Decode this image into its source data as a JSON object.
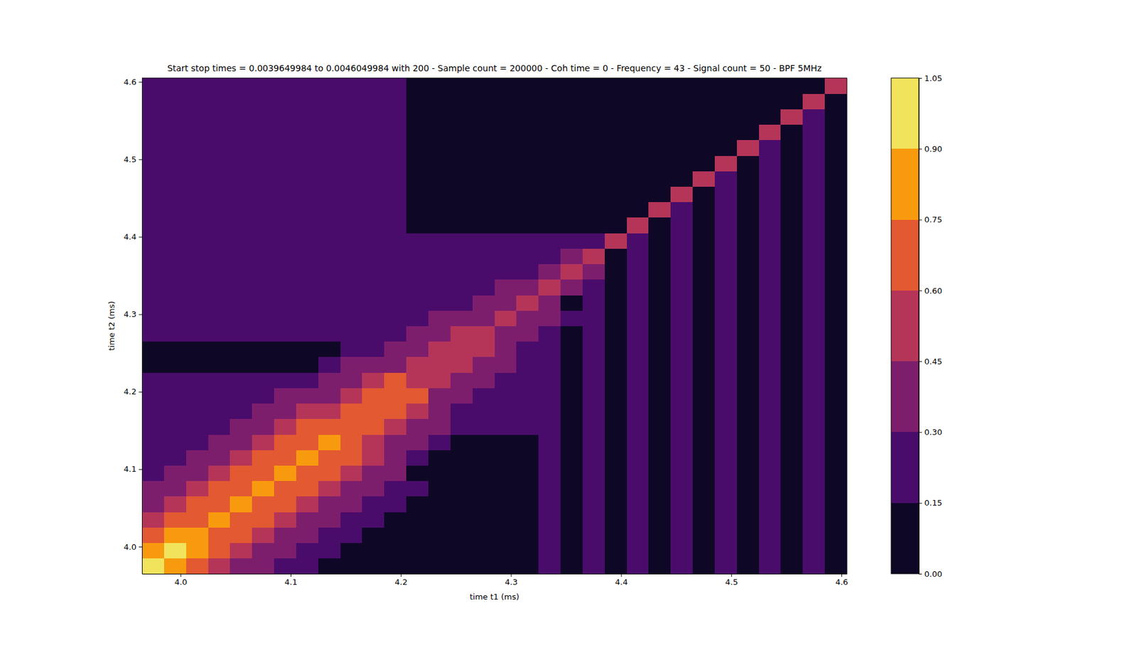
{
  "chart_data": {
    "type": "heatmap",
    "title": "Start stop times = 0.0039649984 to 0.0046049984 with 200 - Sample count = 200000 - Coh time = 0 - Frequency = 43 - Signal count = 50 - BPF 5MHz",
    "x_label": "time t1 (ms)",
    "y_label": "time t2 (ms)",
    "xlim": [
      3.965,
      4.605
    ],
    "ylim": [
      3.965,
      4.605
    ],
    "xticks": [
      {
        "value": 4.0,
        "label": "4.0"
      },
      4.1,
      4.2,
      4.3,
      4.4,
      4.5,
      4.6
    ],
    "yticks": [
      {
        "value": 4.0,
        "label": "4.0"
      },
      4.1,
      4.2,
      4.3,
      4.4,
      4.5,
      4.6
    ],
    "x_bins": [
      3.965,
      3.985,
      4.005,
      4.025,
      4.045,
      4.065,
      4.085,
      4.105,
      4.125,
      4.145,
      4.165,
      4.185,
      4.205,
      4.225,
      4.245,
      4.265,
      4.285,
      4.305,
      4.325,
      4.345,
      4.365,
      4.385,
      4.405,
      4.425,
      4.445,
      4.465,
      4.485,
      4.505,
      4.525,
      4.545,
      4.565,
      4.585,
      4.605
    ],
    "y_bins": [
      3.965,
      3.985,
      4.005,
      4.025,
      4.045,
      4.065,
      4.085,
      4.105,
      4.125,
      4.145,
      4.165,
      4.185,
      4.205,
      4.225,
      4.245,
      4.265,
      4.285,
      4.305,
      4.325,
      4.345,
      4.365,
      4.385,
      4.405,
      4.425,
      4.445,
      4.465,
      4.485,
      4.505,
      4.525,
      4.545,
      4.565,
      4.585,
      4.605
    ],
    "z": [
      [
        0.95,
        0.8,
        0.65,
        0.5,
        0.35,
        0.35,
        0.2,
        0.2,
        0.1,
        0.1,
        0.1,
        0.1,
        0.1,
        0.1,
        0.1,
        0.1,
        0.1,
        0.1,
        0.2,
        0.1,
        0.2,
        0.1,
        0.2,
        0.1,
        0.2,
        0.1,
        0.2,
        0.1,
        0.2,
        0.1,
        0.2,
        0.1
      ],
      [
        0.8,
        0.95,
        0.8,
        0.65,
        0.5,
        0.35,
        0.35,
        0.2,
        0.2,
        0.1,
        0.1,
        0.1,
        0.1,
        0.1,
        0.1,
        0.1,
        0.1,
        0.1,
        0.2,
        0.1,
        0.2,
        0.1,
        0.2,
        0.1,
        0.2,
        0.1,
        0.2,
        0.1,
        0.2,
        0.1,
        0.2,
        0.1
      ],
      [
        0.65,
        0.8,
        0.8,
        0.65,
        0.65,
        0.5,
        0.35,
        0.35,
        0.2,
        0.2,
        0.1,
        0.1,
        0.1,
        0.1,
        0.1,
        0.1,
        0.1,
        0.1,
        0.2,
        0.1,
        0.2,
        0.1,
        0.2,
        0.1,
        0.2,
        0.1,
        0.2,
        0.1,
        0.2,
        0.1,
        0.2,
        0.1
      ],
      [
        0.5,
        0.65,
        0.65,
        0.8,
        0.65,
        0.65,
        0.5,
        0.35,
        0.35,
        0.2,
        0.2,
        0.1,
        0.1,
        0.1,
        0.1,
        0.1,
        0.1,
        0.1,
        0.2,
        0.1,
        0.2,
        0.1,
        0.2,
        0.1,
        0.2,
        0.1,
        0.2,
        0.1,
        0.2,
        0.1,
        0.2,
        0.1
      ],
      [
        0.35,
        0.5,
        0.65,
        0.65,
        0.8,
        0.65,
        0.65,
        0.5,
        0.35,
        0.35,
        0.2,
        0.2,
        0.1,
        0.1,
        0.1,
        0.1,
        0.1,
        0.1,
        0.2,
        0.1,
        0.2,
        0.1,
        0.2,
        0.1,
        0.2,
        0.1,
        0.2,
        0.1,
        0.2,
        0.1,
        0.2,
        0.1
      ],
      [
        0.35,
        0.35,
        0.5,
        0.65,
        0.65,
        0.8,
        0.65,
        0.65,
        0.5,
        0.35,
        0.35,
        0.2,
        0.2,
        0.1,
        0.1,
        0.1,
        0.1,
        0.1,
        0.2,
        0.1,
        0.2,
        0.1,
        0.2,
        0.1,
        0.2,
        0.1,
        0.2,
        0.1,
        0.2,
        0.1,
        0.2,
        0.1
      ],
      [
        0.2,
        0.35,
        0.35,
        0.5,
        0.65,
        0.65,
        0.8,
        0.65,
        0.65,
        0.5,
        0.35,
        0.35,
        0.1,
        0.1,
        0.1,
        0.1,
        0.1,
        0.1,
        0.2,
        0.1,
        0.2,
        0.1,
        0.2,
        0.1,
        0.2,
        0.1,
        0.2,
        0.1,
        0.2,
        0.1,
        0.2,
        0.1
      ],
      [
        0.2,
        0.2,
        0.35,
        0.35,
        0.5,
        0.65,
        0.65,
        0.8,
        0.65,
        0.65,
        0.5,
        0.35,
        0.2,
        0.1,
        0.1,
        0.1,
        0.1,
        0.1,
        0.2,
        0.1,
        0.2,
        0.1,
        0.2,
        0.1,
        0.2,
        0.1,
        0.2,
        0.1,
        0.2,
        0.1,
        0.2,
        0.1
      ],
      [
        0.2,
        0.2,
        0.2,
        0.35,
        0.35,
        0.5,
        0.65,
        0.65,
        0.8,
        0.65,
        0.5,
        0.35,
        0.35,
        0.2,
        0.1,
        0.1,
        0.1,
        0.1,
        0.2,
        0.1,
        0.2,
        0.1,
        0.2,
        0.1,
        0.2,
        0.1,
        0.2,
        0.1,
        0.2,
        0.1,
        0.2,
        0.1
      ],
      [
        0.2,
        0.2,
        0.2,
        0.2,
        0.35,
        0.35,
        0.5,
        0.65,
        0.65,
        0.65,
        0.65,
        0.5,
        0.35,
        0.35,
        0.2,
        0.2,
        0.2,
        0.2,
        0.2,
        0.1,
        0.2,
        0.1,
        0.2,
        0.1,
        0.2,
        0.1,
        0.2,
        0.1,
        0.2,
        0.1,
        0.2,
        0.1
      ],
      [
        0.2,
        0.2,
        0.2,
        0.2,
        0.2,
        0.35,
        0.35,
        0.5,
        0.5,
        0.65,
        0.65,
        0.65,
        0.5,
        0.35,
        0.2,
        0.2,
        0.2,
        0.2,
        0.2,
        0.1,
        0.2,
        0.1,
        0.2,
        0.1,
        0.2,
        0.1,
        0.2,
        0.1,
        0.2,
        0.1,
        0.2,
        0.1
      ],
      [
        0.2,
        0.2,
        0.2,
        0.2,
        0.2,
        0.2,
        0.35,
        0.35,
        0.35,
        0.5,
        0.65,
        0.65,
        0.65,
        0.35,
        0.35,
        0.2,
        0.2,
        0.2,
        0.2,
        0.1,
        0.2,
        0.1,
        0.2,
        0.1,
        0.2,
        0.1,
        0.2,
        0.1,
        0.2,
        0.1,
        0.2,
        0.1
      ],
      [
        0.2,
        0.2,
        0.2,
        0.2,
        0.2,
        0.2,
        0.2,
        0.2,
        0.35,
        0.35,
        0.5,
        0.65,
        0.5,
        0.5,
        0.35,
        0.35,
        0.2,
        0.2,
        0.2,
        0.1,
        0.2,
        0.1,
        0.2,
        0.1,
        0.2,
        0.1,
        0.2,
        0.1,
        0.2,
        0.1,
        0.2,
        0.1
      ],
      [
        0.1,
        0.1,
        0.1,
        0.1,
        0.1,
        0.1,
        0.1,
        0.1,
        0.2,
        0.35,
        0.35,
        0.35,
        0.5,
        0.5,
        0.5,
        0.35,
        0.35,
        0.2,
        0.2,
        0.1,
        0.2,
        0.1,
        0.2,
        0.1,
        0.2,
        0.1,
        0.2,
        0.1,
        0.2,
        0.1,
        0.2,
        0.1
      ],
      [
        0.1,
        0.1,
        0.1,
        0.1,
        0.1,
        0.1,
        0.1,
        0.1,
        0.1,
        0.2,
        0.2,
        0.35,
        0.35,
        0.5,
        0.5,
        0.5,
        0.35,
        0.2,
        0.2,
        0.1,
        0.2,
        0.1,
        0.2,
        0.1,
        0.2,
        0.1,
        0.2,
        0.1,
        0.2,
        0.1,
        0.2,
        0.1
      ],
      [
        0.2,
        0.2,
        0.2,
        0.2,
        0.2,
        0.2,
        0.2,
        0.2,
        0.2,
        0.2,
        0.2,
        0.2,
        0.35,
        0.35,
        0.5,
        0.5,
        0.35,
        0.35,
        0.2,
        0.1,
        0.2,
        0.1,
        0.2,
        0.1,
        0.2,
        0.1,
        0.2,
        0.1,
        0.2,
        0.1,
        0.2,
        0.1
      ],
      [
        0.2,
        0.2,
        0.2,
        0.2,
        0.2,
        0.2,
        0.2,
        0.2,
        0.2,
        0.2,
        0.2,
        0.2,
        0.2,
        0.35,
        0.35,
        0.35,
        0.5,
        0.35,
        0.35,
        0.2,
        0.2,
        0.1,
        0.2,
        0.1,
        0.2,
        0.1,
        0.2,
        0.1,
        0.2,
        0.1,
        0.2,
        0.1
      ],
      [
        0.2,
        0.2,
        0.2,
        0.2,
        0.2,
        0.2,
        0.2,
        0.2,
        0.2,
        0.2,
        0.2,
        0.2,
        0.2,
        0.2,
        0.2,
        0.35,
        0.35,
        0.5,
        0.35,
        0.1,
        0.2,
        0.1,
        0.2,
        0.1,
        0.2,
        0.1,
        0.2,
        0.1,
        0.2,
        0.1,
        0.2,
        0.1
      ],
      [
        0.2,
        0.2,
        0.2,
        0.2,
        0.2,
        0.2,
        0.2,
        0.2,
        0.2,
        0.2,
        0.2,
        0.2,
        0.2,
        0.2,
        0.2,
        0.2,
        0.35,
        0.35,
        0.5,
        0.35,
        0.2,
        0.1,
        0.2,
        0.1,
        0.2,
        0.1,
        0.2,
        0.1,
        0.2,
        0.1,
        0.2,
        0.1
      ],
      [
        0.2,
        0.2,
        0.2,
        0.2,
        0.2,
        0.2,
        0.2,
        0.2,
        0.2,
        0.2,
        0.2,
        0.2,
        0.2,
        0.2,
        0.2,
        0.2,
        0.2,
        0.2,
        0.35,
        0.5,
        0.35,
        0.1,
        0.2,
        0.1,
        0.2,
        0.1,
        0.2,
        0.1,
        0.2,
        0.1,
        0.2,
        0.1
      ],
      [
        0.2,
        0.2,
        0.2,
        0.2,
        0.2,
        0.2,
        0.2,
        0.2,
        0.2,
        0.2,
        0.2,
        0.2,
        0.2,
        0.2,
        0.2,
        0.2,
        0.2,
        0.2,
        0.2,
        0.35,
        0.5,
        0.1,
        0.2,
        0.1,
        0.2,
        0.1,
        0.2,
        0.1,
        0.2,
        0.1,
        0.2,
        0.1
      ],
      [
        0.2,
        0.2,
        0.2,
        0.2,
        0.2,
        0.2,
        0.2,
        0.2,
        0.2,
        0.2,
        0.2,
        0.2,
        0.2,
        0.2,
        0.2,
        0.2,
        0.2,
        0.2,
        0.2,
        0.2,
        0.2,
        0.5,
        0.2,
        0.1,
        0.2,
        0.1,
        0.2,
        0.1,
        0.2,
        0.1,
        0.2,
        0.1
      ],
      [
        0.2,
        0.2,
        0.2,
        0.2,
        0.2,
        0.2,
        0.2,
        0.2,
        0.2,
        0.2,
        0.2,
        0.2,
        0.1,
        0.1,
        0.1,
        0.1,
        0.1,
        0.1,
        0.1,
        0.1,
        0.1,
        0.1,
        0.5,
        0.1,
        0.2,
        0.1,
        0.2,
        0.1,
        0.2,
        0.1,
        0.2,
        0.1
      ],
      [
        0.2,
        0.2,
        0.2,
        0.2,
        0.2,
        0.2,
        0.2,
        0.2,
        0.2,
        0.2,
        0.2,
        0.2,
        0.1,
        0.1,
        0.1,
        0.1,
        0.1,
        0.1,
        0.1,
        0.1,
        0.1,
        0.1,
        0.1,
        0.5,
        0.2,
        0.1,
        0.2,
        0.1,
        0.2,
        0.1,
        0.2,
        0.1
      ],
      [
        0.2,
        0.2,
        0.2,
        0.2,
        0.2,
        0.2,
        0.2,
        0.2,
        0.2,
        0.2,
        0.2,
        0.2,
        0.1,
        0.1,
        0.1,
        0.1,
        0.1,
        0.1,
        0.1,
        0.1,
        0.1,
        0.1,
        0.1,
        0.1,
        0.5,
        0.1,
        0.2,
        0.1,
        0.2,
        0.1,
        0.2,
        0.1
      ],
      [
        0.2,
        0.2,
        0.2,
        0.2,
        0.2,
        0.2,
        0.2,
        0.2,
        0.2,
        0.2,
        0.2,
        0.2,
        0.1,
        0.1,
        0.1,
        0.1,
        0.1,
        0.1,
        0.1,
        0.1,
        0.1,
        0.1,
        0.1,
        0.1,
        0.1,
        0.5,
        0.2,
        0.1,
        0.2,
        0.1,
        0.2,
        0.1
      ],
      [
        0.2,
        0.2,
        0.2,
        0.2,
        0.2,
        0.2,
        0.2,
        0.2,
        0.2,
        0.2,
        0.2,
        0.2,
        0.1,
        0.1,
        0.1,
        0.1,
        0.1,
        0.1,
        0.1,
        0.1,
        0.1,
        0.1,
        0.1,
        0.1,
        0.1,
        0.1,
        0.5,
        0.1,
        0.2,
        0.1,
        0.2,
        0.1
      ],
      [
        0.2,
        0.2,
        0.2,
        0.2,
        0.2,
        0.2,
        0.2,
        0.2,
        0.2,
        0.2,
        0.2,
        0.2,
        0.1,
        0.1,
        0.1,
        0.1,
        0.1,
        0.1,
        0.1,
        0.1,
        0.1,
        0.1,
        0.1,
        0.1,
        0.1,
        0.1,
        0.1,
        0.5,
        0.2,
        0.1,
        0.2,
        0.1
      ],
      [
        0.2,
        0.2,
        0.2,
        0.2,
        0.2,
        0.2,
        0.2,
        0.2,
        0.2,
        0.2,
        0.2,
        0.2,
        0.1,
        0.1,
        0.1,
        0.1,
        0.1,
        0.1,
        0.1,
        0.1,
        0.1,
        0.1,
        0.1,
        0.1,
        0.1,
        0.1,
        0.1,
        0.1,
        0.5,
        0.1,
        0.2,
        0.1
      ],
      [
        0.2,
        0.2,
        0.2,
        0.2,
        0.2,
        0.2,
        0.2,
        0.2,
        0.2,
        0.2,
        0.2,
        0.2,
        0.1,
        0.1,
        0.1,
        0.1,
        0.1,
        0.1,
        0.1,
        0.1,
        0.1,
        0.1,
        0.1,
        0.1,
        0.1,
        0.1,
        0.1,
        0.1,
        0.1,
        0.5,
        0.2,
        0.1
      ],
      [
        0.2,
        0.2,
        0.2,
        0.2,
        0.2,
        0.2,
        0.2,
        0.2,
        0.2,
        0.2,
        0.2,
        0.2,
        0.1,
        0.1,
        0.1,
        0.1,
        0.1,
        0.1,
        0.1,
        0.1,
        0.1,
        0.1,
        0.1,
        0.1,
        0.1,
        0.1,
        0.1,
        0.1,
        0.1,
        0.1,
        0.5,
        0.1
      ],
      [
        0.2,
        0.2,
        0.2,
        0.2,
        0.2,
        0.2,
        0.2,
        0.2,
        0.2,
        0.2,
        0.2,
        0.2,
        0.1,
        0.1,
        0.1,
        0.1,
        0.1,
        0.1,
        0.1,
        0.1,
        0.1,
        0.1,
        0.1,
        0.1,
        0.1,
        0.1,
        0.1,
        0.1,
        0.1,
        0.1,
        0.1,
        0.5
      ]
    ],
    "colorbar": {
      "range": [
        0,
        1.05
      ],
      "ticks": [
        {
          "value": 0,
          "label": "0.00"
        },
        0.15,
        {
          "value": 0.3,
          "label": "0.30"
        },
        0.45,
        {
          "value": 0.6,
          "label": "0.60"
        },
        0.75,
        {
          "value": 0.9,
          "label": "0.90"
        },
        1.05
      ],
      "colors": [
        "#0e0826",
        "#4a0c6b",
        "#7d1e6d",
        "#b53559",
        "#e35932",
        "#f89a0e",
        "#f1e45c"
      ]
    }
  }
}
